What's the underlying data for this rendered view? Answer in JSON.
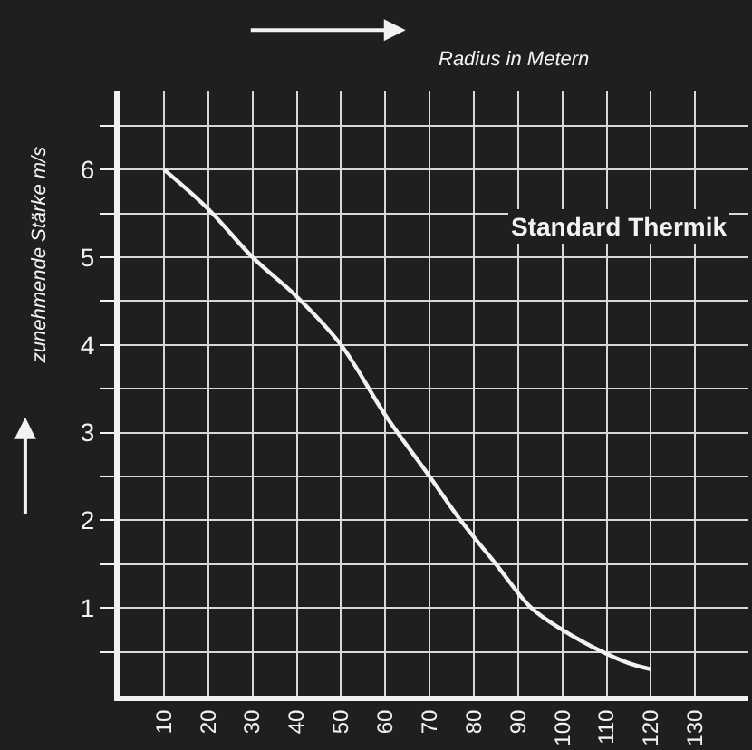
{
  "chart_data": {
    "type": "line",
    "xlabel": "Radius in Metern",
    "ylabel": "zunehmende Stärke m/s",
    "x": [
      10,
      20,
      30,
      40,
      50,
      60,
      70,
      77,
      85,
      93,
      100,
      109,
      115,
      120
    ],
    "series": [
      {
        "name": "Standard Thermik",
        "color": "#f2f2f2",
        "values": [
          6.0,
          5.55,
          5.0,
          4.55,
          4.0,
          3.2,
          2.5,
          2.0,
          1.5,
          1.0,
          0.75,
          0.5,
          0.37,
          0.3
        ]
      }
    ],
    "xlim": [
      0,
      142
    ],
    "xticks": [
      10,
      20,
      30,
      40,
      50,
      60,
      70,
      80,
      90,
      100,
      110,
      120,
      130
    ],
    "ylim": [
      0,
      6.9
    ],
    "yticks": [
      {
        "value": 0.5,
        "label": null
      },
      1,
      {
        "value": 1.5,
        "label": null
      },
      2,
      {
        "value": 2.5,
        "label": null
      },
      3,
      {
        "value": 3.5,
        "label": null
      },
      4,
      {
        "value": 4.5,
        "label": null
      },
      5,
      {
        "value": 5.5,
        "label": null
      },
      6,
      {
        "value": 6.5,
        "label": null
      }
    ],
    "grid": true,
    "marker": "none",
    "line_style": "solid",
    "legend": false
  }
}
